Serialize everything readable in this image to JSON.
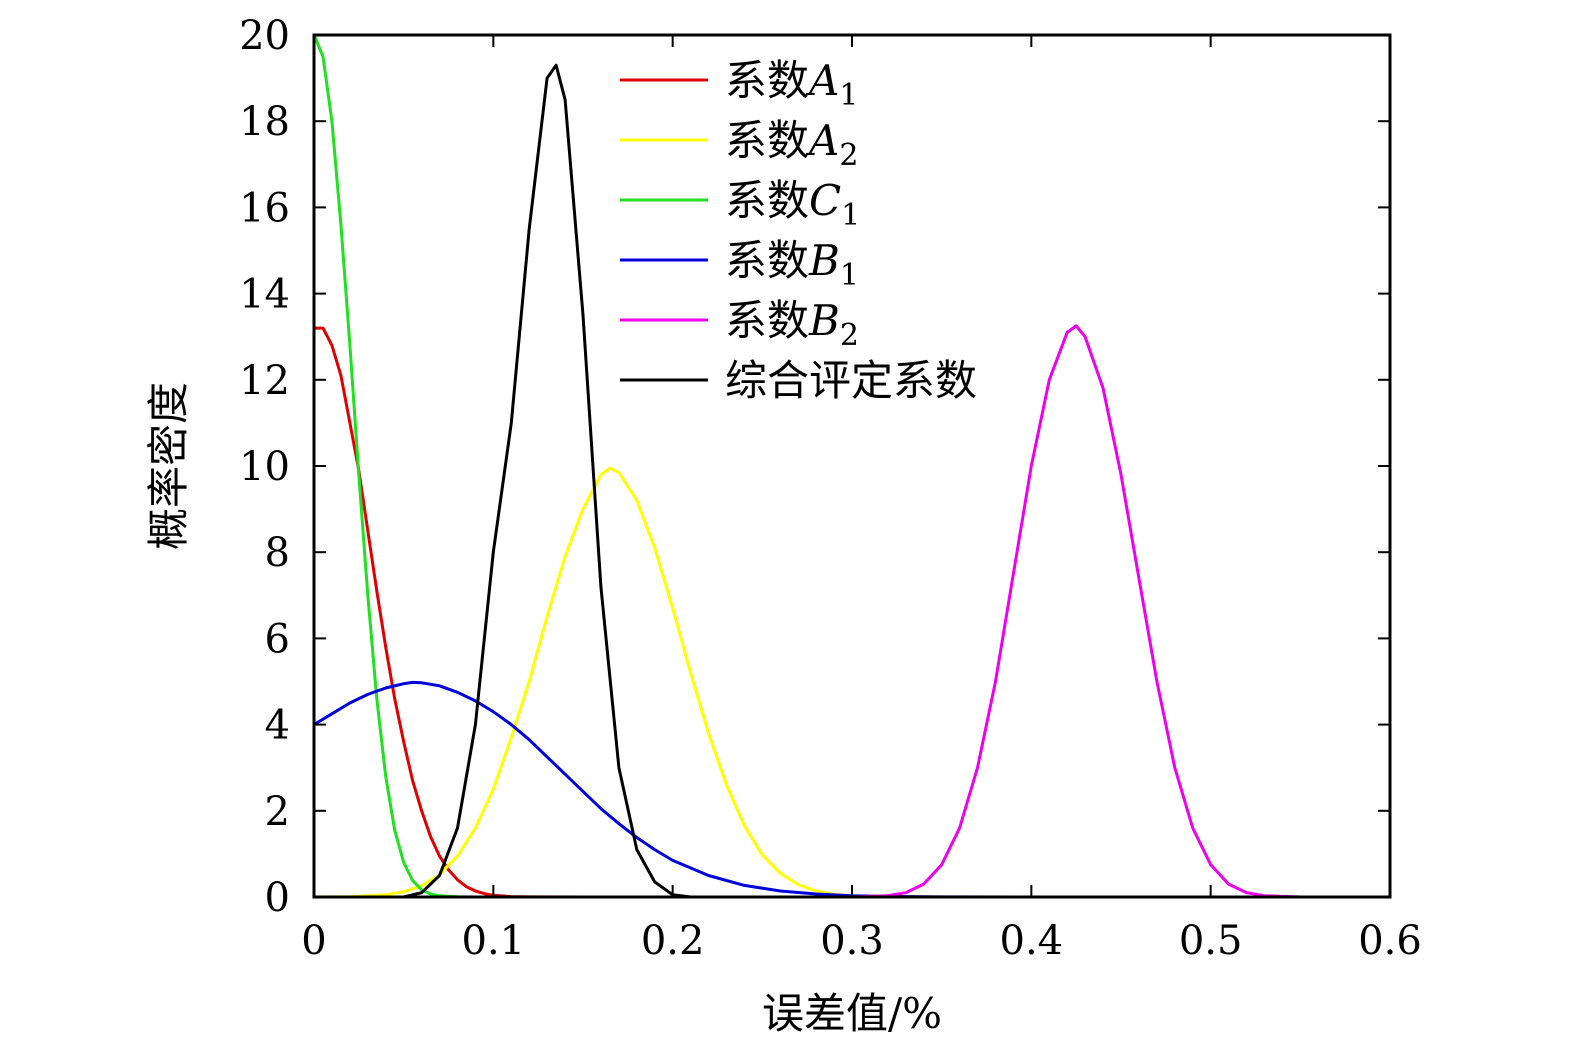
{
  "chart_data": {
    "type": "line",
    "xlabel": "误差值/%",
    "ylabel": "概率密度",
    "xlim": [
      0,
      0.6
    ],
    "ylim": [
      0,
      20
    ],
    "x_ticks": [
      0,
      0.1,
      0.2,
      0.3,
      0.4,
      0.5,
      0.6
    ],
    "x_tick_labels": [
      "0",
      "0.1",
      "0.2",
      "0.3",
      "0.4",
      "0.5",
      "0.6"
    ],
    "y_ticks": [
      0,
      2,
      4,
      6,
      8,
      10,
      12,
      14,
      16,
      18,
      20
    ],
    "y_tick_labels": [
      "0",
      "2",
      "4",
      "6",
      "8",
      "10",
      "12",
      "14",
      "16",
      "18",
      "20"
    ],
    "grid": false,
    "legend_position": "top-right",
    "series": [
      {
        "name": "系数",
        "sub_label": "A",
        "subscript": "1",
        "color": "#e00000",
        "x": [
          0,
          0.005,
          0.01,
          0.015,
          0.02,
          0.025,
          0.03,
          0.035,
          0.04,
          0.045,
          0.05,
          0.055,
          0.06,
          0.065,
          0.07,
          0.075,
          0.08,
          0.085,
          0.09,
          0.095,
          0.1,
          0.11,
          0.12,
          0.15,
          0.2,
          0.3,
          0.4,
          0.5,
          0.55
        ],
        "y": [
          13.2,
          13.2,
          12.8,
          12.1,
          11.0,
          9.9,
          8.5,
          7.1,
          5.8,
          4.6,
          3.6,
          2.7,
          2.0,
          1.4,
          0.95,
          0.63,
          0.4,
          0.24,
          0.14,
          0.08,
          0.04,
          0.01,
          0.003,
          0,
          0,
          0,
          0,
          0,
          0
        ]
      },
      {
        "name": "系数",
        "sub_label": "A",
        "subscript": "2",
        "color": "#ffff00",
        "x": [
          0,
          0.02,
          0.04,
          0.05,
          0.06,
          0.07,
          0.08,
          0.09,
          0.1,
          0.11,
          0.12,
          0.13,
          0.14,
          0.15,
          0.16,
          0.165,
          0.17,
          0.18,
          0.19,
          0.2,
          0.21,
          0.22,
          0.23,
          0.24,
          0.25,
          0.26,
          0.27,
          0.28,
          0.29,
          0.3,
          0.32,
          0.35,
          0.4,
          0.5,
          0.55
        ],
        "y": [
          0,
          0.005,
          0.05,
          0.12,
          0.26,
          0.52,
          0.95,
          1.6,
          2.5,
          3.7,
          5.0,
          6.5,
          7.9,
          9.0,
          9.8,
          9.95,
          9.85,
          9.2,
          8.1,
          6.7,
          5.2,
          3.8,
          2.6,
          1.65,
          0.98,
          0.55,
          0.29,
          0.14,
          0.065,
          0.03,
          0.006,
          0,
          0,
          0,
          0
        ]
      },
      {
        "name": "系数",
        "sub_label": "C",
        "subscript": "1",
        "color": "#20e020",
        "x": [
          0,
          0.005,
          0.01,
          0.015,
          0.02,
          0.025,
          0.03,
          0.035,
          0.04,
          0.045,
          0.05,
          0.055,
          0.06,
          0.065,
          0.07,
          0.08,
          0.09,
          0.1,
          0.12,
          0.15,
          0.2,
          0.3,
          0.4,
          0.5,
          0.55
        ],
        "y": [
          20,
          19.5,
          18,
          15.6,
          12.8,
          9.8,
          7.0,
          4.6,
          2.8,
          1.55,
          0.8,
          0.38,
          0.17,
          0.07,
          0.027,
          0.004,
          0.001,
          0,
          0,
          0,
          0,
          0,
          0,
          0,
          0
        ]
      },
      {
        "name": "系数",
        "sub_label": "B",
        "subscript": "1",
        "color": "#0000dd",
        "x": [
          0,
          0.01,
          0.02,
          0.03,
          0.04,
          0.05,
          0.055,
          0.06,
          0.07,
          0.08,
          0.09,
          0.1,
          0.11,
          0.12,
          0.13,
          0.14,
          0.15,
          0.16,
          0.17,
          0.18,
          0.19,
          0.2,
          0.22,
          0.24,
          0.26,
          0.28,
          0.3,
          0.32,
          0.35,
          0.4,
          0.45,
          0.5,
          0.55
        ],
        "y": [
          4.0,
          4.25,
          4.5,
          4.7,
          4.85,
          4.95,
          4.98,
          4.97,
          4.9,
          4.75,
          4.55,
          4.3,
          4.0,
          3.65,
          3.25,
          2.85,
          2.45,
          2.05,
          1.7,
          1.38,
          1.1,
          0.85,
          0.5,
          0.27,
          0.14,
          0.07,
          0.03,
          0.012,
          0.003,
          0,
          0,
          0,
          0
        ]
      },
      {
        "name": "系数",
        "sub_label": "B",
        "subscript": "2",
        "color": "#ee00ee",
        "x": [
          0,
          0.3,
          0.32,
          0.33,
          0.34,
          0.35,
          0.36,
          0.37,
          0.38,
          0.39,
          0.4,
          0.41,
          0.42,
          0.425,
          0.43,
          0.44,
          0.45,
          0.46,
          0.47,
          0.48,
          0.49,
          0.5,
          0.51,
          0.52,
          0.53,
          0.55
        ],
        "y": [
          0,
          0,
          0.03,
          0.1,
          0.3,
          0.75,
          1.6,
          3.0,
          5.0,
          7.5,
          10.0,
          12.0,
          13.1,
          13.25,
          13.0,
          11.8,
          9.8,
          7.4,
          5.0,
          3.0,
          1.6,
          0.75,
          0.3,
          0.1,
          0.03,
          0
        ]
      },
      {
        "name": "综合评定系数",
        "sub_label": "",
        "subscript": "",
        "color": "#000000",
        "x": [
          0.05,
          0.06,
          0.07,
          0.08,
          0.09,
          0.1,
          0.11,
          0.12,
          0.13,
          0.135,
          0.14,
          0.15,
          0.16,
          0.17,
          0.18,
          0.19,
          0.2,
          0.21
        ],
        "y": [
          0,
          0.1,
          0.5,
          1.6,
          4.0,
          8.0,
          11.0,
          15.5,
          19.0,
          19.3,
          18.5,
          13.5,
          7.2,
          3.0,
          1.1,
          0.35,
          0.05,
          0
        ]
      }
    ]
  }
}
